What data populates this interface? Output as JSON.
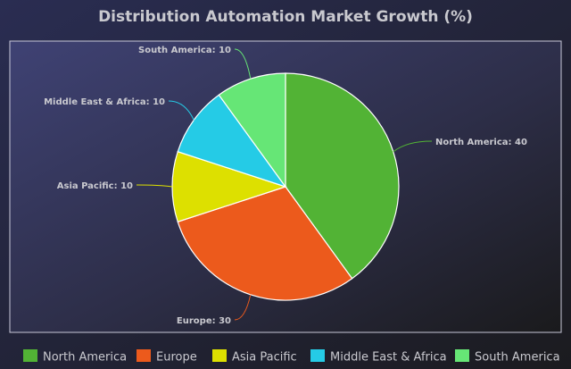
{
  "chart_data": {
    "type": "pie",
    "title": "Distribution Automation Market Growth (%)",
    "categories": [
      "North America",
      "Europe",
      "Asia Pacific",
      "Middle East & Africa",
      "South America"
    ],
    "values": [
      40,
      30,
      10,
      10,
      10
    ],
    "labels": [
      "North America: 40",
      "Europe: 30",
      "Asia Pacific: 10",
      "Middle East & Africa: 10",
      "South America: 10"
    ],
    "colors": [
      "#52b335",
      "#ec5a1c",
      "#dde000",
      "#25cbe6",
      "#66e676"
    ],
    "legend_position": "bottom"
  }
}
